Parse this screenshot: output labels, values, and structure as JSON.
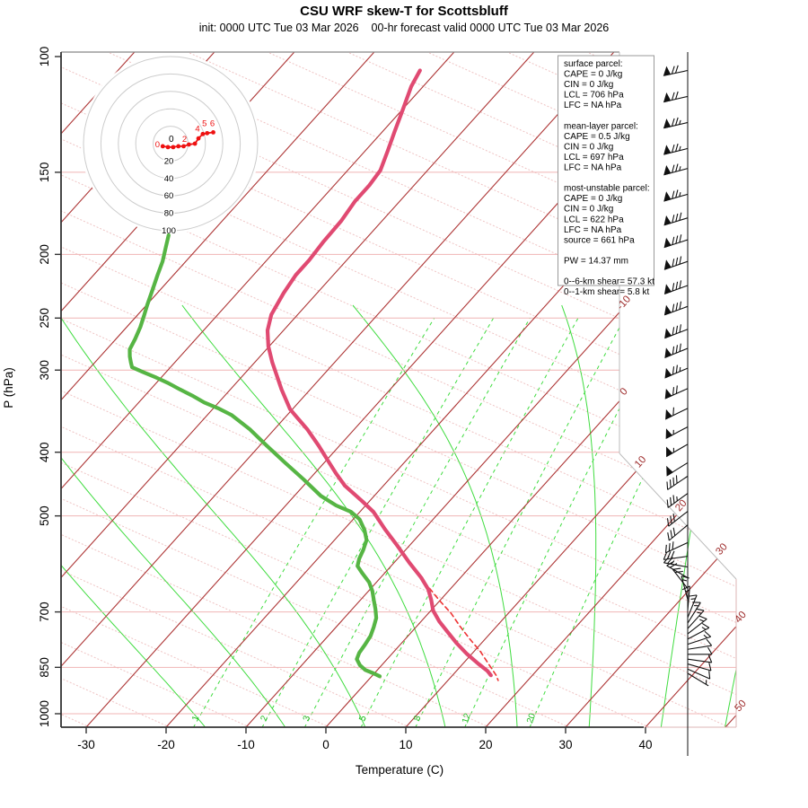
{
  "title": "CSU WRF skew-T for Scottsbluff",
  "subtitle": "init: 0000 UTC Tue 03 Mar 2026    00-hr forecast valid 0000 UTC Tue 03 Mar 2026",
  "axes": {
    "xlabel": "Temperature (C)",
    "ylabel": "P (hPa)",
    "x_ticks": [
      -30,
      -20,
      -10,
      0,
      10,
      20,
      30,
      40
    ],
    "pressure_ticks": [
      100,
      150,
      200,
      250,
      300,
      400,
      500,
      700,
      850,
      1000
    ]
  },
  "legend": {
    "lines": [
      "surface parcel:",
      "CAPE = 0 J/kg",
      "CIN = 0 J/kg",
      "LCL = 706 hPa",
      "LFC = NA hPa",
      "",
      "mean-layer parcel:",
      "CAPE = 0.5 J/kg",
      "CIN = 0 J/kg",
      "LCL = 697 hPa",
      "LFC = NA hPa",
      "",
      "most-unstable parcel:",
      "CAPE = 0 J/kg",
      "CIN = 0 J/kg",
      "LCL = 622 hPa",
      "LFC = NA hPa",
      "source = 661 hPa",
      "",
      "PW =  14.37 mm",
      "",
      "0--6-km shear= 57.3 kt",
      "0--1-km shear= 5.8 kt"
    ]
  },
  "colors": {
    "isotherm": "#ad3535",
    "isotherm_label": "#a03030",
    "dry_adiabat": "#efc3c3",
    "pressure_line": "#f0b4b4",
    "moist_adiabat": "#3fdc3f",
    "mixing_ratio": "#3fdc3f",
    "mixing_label": "#22bb22",
    "temperature": "#e04a72",
    "dewpoint": "#56b544",
    "parcel": "#ee3333",
    "axis": "#333333",
    "frame": "#bbbbbb",
    "barb": "#111111",
    "hodo_ring": "#cccccc",
    "hodo_trace": "#ee1111"
  },
  "chart_data": {
    "type": "skew-t sounding",
    "pressure_range_hpa": [
      100,
      1050
    ],
    "temp_axis_range_c": [
      -30,
      40
    ],
    "isotherms_c": {
      "min": -120,
      "max": 50,
      "step": 10
    },
    "isotherm_edge_labels_c": [
      -10,
      0,
      10,
      20,
      30,
      40,
      50
    ],
    "mixing_ratio_lines_gkg": [
      1,
      2,
      3,
      5,
      8,
      12,
      20
    ],
    "moist_adiabat_starts_c": [
      -15,
      -5,
      5,
      15,
      24,
      33,
      42,
      50
    ],
    "temperature_profile_p_t": [
      [
        105,
        -62.2
      ],
      [
        111,
        -61.5
      ],
      [
        120,
        -60.0
      ],
      [
        130,
        -58.5
      ],
      [
        139,
        -57.2
      ],
      [
        149,
        -55.9
      ],
      [
        157,
        -55.6
      ],
      [
        166,
        -55.6
      ],
      [
        178,
        -55.1
      ],
      [
        191,
        -55.0
      ],
      [
        204,
        -54.7
      ],
      [
        215,
        -54.7
      ],
      [
        229,
        -54.2
      ],
      [
        247,
        -53.3
      ],
      [
        261,
        -52.0
      ],
      [
        276,
        -50.1
      ],
      [
        292,
        -47.8
      ],
      [
        302,
        -46.3
      ],
      [
        321,
        -43.6
      ],
      [
        344,
        -40.3
      ],
      [
        353,
        -38.7
      ],
      [
        369,
        -35.9
      ],
      [
        391,
        -32.6
      ],
      [
        411,
        -29.9
      ],
      [
        431,
        -27.3
      ],
      [
        450,
        -24.8
      ],
      [
        475,
        -20.9
      ],
      [
        493,
        -18.3
      ],
      [
        524,
        -14.9
      ],
      [
        556,
        -11.4
      ],
      [
        589,
        -8.1
      ],
      [
        621,
        -4.9
      ],
      [
        647,
        -2.7
      ],
      [
        672,
        -1.1
      ],
      [
        697,
        0.3
      ],
      [
        724,
        2.3
      ],
      [
        752,
        4.6
      ],
      [
        781,
        6.9
      ],
      [
        811,
        9.4
      ],
      [
        839,
        11.9
      ],
      [
        861,
        13.9
      ],
      [
        874,
        14.8
      ]
    ],
    "dewpoint_profile_p_t": [
      [
        187,
        -75.1
      ],
      [
        195,
        -74.1
      ],
      [
        205,
        -72.9
      ],
      [
        215,
        -72.0
      ],
      [
        226,
        -71.0
      ],
      [
        239,
        -69.9
      ],
      [
        248,
        -69.1
      ],
      [
        258,
        -68.3
      ],
      [
        269,
        -67.6
      ],
      [
        279,
        -67.1
      ],
      [
        286,
        -66.3
      ],
      [
        292,
        -65.5
      ],
      [
        297,
        -64.8
      ],
      [
        302,
        -62.9
      ],
      [
        308,
        -60.6
      ],
      [
        314,
        -58.5
      ],
      [
        321,
        -56.3
      ],
      [
        328,
        -54.1
      ],
      [
        336,
        -51.8
      ],
      [
        343,
        -49.4
      ],
      [
        351,
        -47.0
      ],
      [
        369,
        -43.1
      ],
      [
        391,
        -39.1
      ],
      [
        415,
        -34.9
      ],
      [
        440,
        -30.7
      ],
      [
        466,
        -26.7
      ],
      [
        482,
        -23.7
      ],
      [
        493,
        -21.1
      ],
      [
        506,
        -19.2
      ],
      [
        525,
        -17.4
      ],
      [
        544,
        -16.0
      ],
      [
        563,
        -15.3
      ],
      [
        581,
        -14.8
      ],
      [
        596,
        -14.2
      ],
      [
        611,
        -12.8
      ],
      [
        631,
        -10.9
      ],
      [
        651,
        -9.5
      ],
      [
        672,
        -8.3
      ],
      [
        693,
        -7.1
      ],
      [
        715,
        -6.0
      ],
      [
        738,
        -5.3
      ],
      [
        761,
        -4.7
      ],
      [
        785,
        -4.4
      ],
      [
        808,
        -4.2
      ],
      [
        826,
        -3.8
      ],
      [
        844,
        -2.7
      ],
      [
        858,
        -1.5
      ],
      [
        868,
        -0.1
      ],
      [
        877,
        1.0
      ]
    ],
    "parcel_path_p_t": [
      [
        514,
        -16.0
      ],
      [
        542,
        -12.9
      ],
      [
        572,
        -9.7
      ],
      [
        603,
        -6.6
      ],
      [
        639,
        -3.2
      ],
      [
        672,
        -0.1
      ],
      [
        704,
        2.9
      ],
      [
        736,
        5.4
      ],
      [
        770,
        8.1
      ],
      [
        804,
        10.8
      ],
      [
        841,
        13.3
      ],
      [
        873,
        15.4
      ],
      [
        890,
        16.3
      ]
    ],
    "wind_barbs_p_spd_dir": [
      [
        105,
        70,
        258
      ],
      [
        115,
        70,
        257
      ],
      [
        126,
        75,
        257
      ],
      [
        138,
        75,
        256
      ],
      [
        148,
        75,
        255
      ],
      [
        162,
        75,
        254
      ],
      [
        176,
        80,
        253
      ],
      [
        190,
        80,
        252
      ],
      [
        205,
        80,
        251
      ],
      [
        223,
        80,
        250
      ],
      [
        240,
        80,
        250
      ],
      [
        260,
        80,
        249
      ],
      [
        278,
        80,
        248
      ],
      [
        298,
        75,
        247
      ],
      [
        320,
        70,
        246
      ],
      [
        343,
        60,
        244
      ],
      [
        366,
        55,
        242
      ],
      [
        389,
        55,
        240
      ],
      [
        415,
        50,
        238
      ],
      [
        435,
        40,
        236
      ],
      [
        462,
        35,
        234
      ],
      [
        492,
        32,
        232
      ],
      [
        516,
        28,
        230
      ],
      [
        549,
        30,
        245
      ],
      [
        576,
        28,
        262
      ],
      [
        598,
        25,
        280
      ],
      [
        621,
        22,
        300
      ],
      [
        645,
        20,
        322
      ],
      [
        670,
        17,
        345
      ],
      [
        696,
        15,
        5
      ],
      [
        714,
        15,
        22
      ],
      [
        728,
        15,
        32
      ],
      [
        742,
        15,
        42
      ],
      [
        756,
        15,
        52
      ],
      [
        770,
        14,
        62
      ],
      [
        784,
        13,
        72
      ],
      [
        798,
        12,
        81
      ],
      [
        812,
        11,
        90
      ],
      [
        826,
        10,
        98
      ],
      [
        840,
        9,
        106
      ],
      [
        855,
        8,
        114
      ],
      [
        868,
        7,
        121
      ]
    ],
    "hodograph": {
      "rings_kt": [
        20,
        40,
        60,
        80,
        100
      ],
      "center_label": "0",
      "trace_uv_kt": [
        [
          -9,
          -3
        ],
        [
          -3,
          -4
        ],
        [
          3,
          -4
        ],
        [
          9,
          -3
        ],
        [
          15,
          -3
        ],
        [
          21,
          -1
        ],
        [
          28,
          0
        ],
        [
          32,
          6
        ],
        [
          37,
          11
        ],
        [
          42,
          12
        ],
        [
          49,
          13
        ]
      ],
      "point_labels": [
        {
          "text": "0",
          "u": -15,
          "v": -4
        },
        {
          "text": "2",
          "u": 16,
          "v": 2
        },
        {
          "text": "4",
          "u": 31,
          "v": 14
        },
        {
          "text": "5",
          "u": 39,
          "v": 20
        },
        {
          "text": "6",
          "u": 48,
          "v": 20
        }
      ]
    }
  }
}
